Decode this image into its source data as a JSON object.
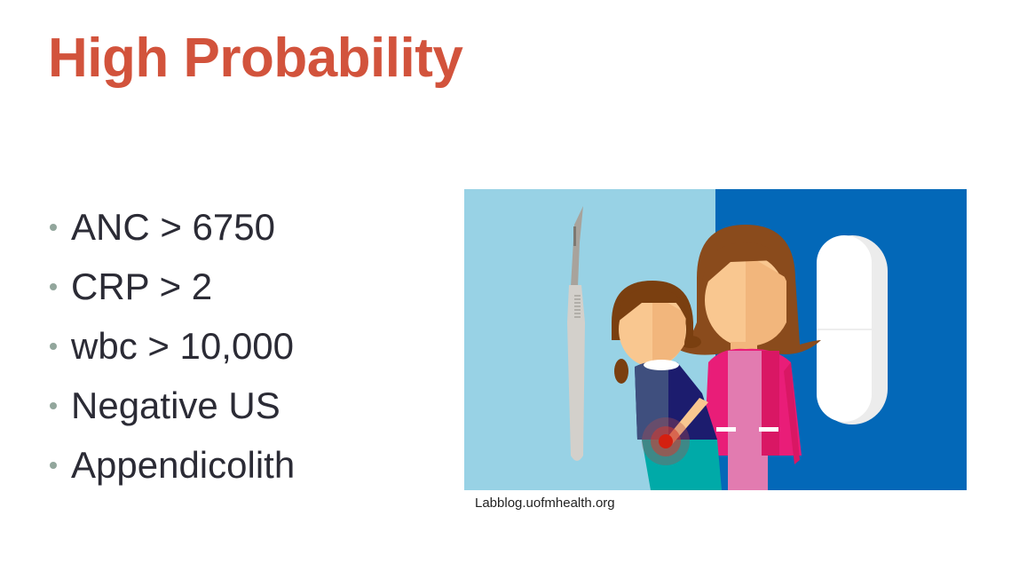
{
  "slide": {
    "title": "High Probability",
    "bullets": [
      {
        "label": "ANC > 6750"
      },
      {
        "label": "CRP > 2"
      },
      {
        "label": "wbc > 10,000"
      },
      {
        "label": "Negative US"
      },
      {
        "label": "Appendicolith"
      }
    ],
    "image_caption": "Labblog.uofmhealth.org",
    "colors": {
      "title": "#d2533c",
      "text": "#2b2b35",
      "bullet": "#92a69c",
      "bg_left": "#98d2e5",
      "bg_right": "#0368b8"
    }
  }
}
